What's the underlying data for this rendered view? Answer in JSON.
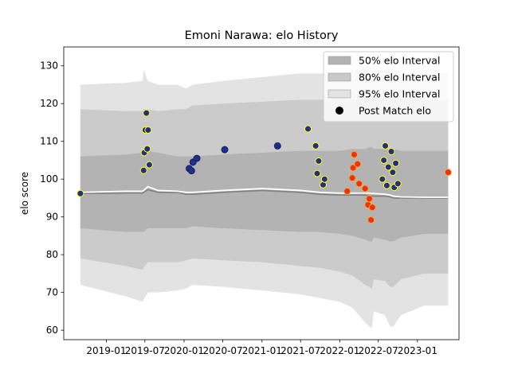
{
  "chart_data": {
    "type": "line",
    "title": "Emoni Narawa: elo History",
    "xlabel": "",
    "ylabel": "elo score",
    "xlim": [
      "2018-06-15",
      "2023-07-15"
    ],
    "ylim": [
      57.5,
      135
    ],
    "yticks": [
      60,
      70,
      80,
      90,
      100,
      110,
      120,
      130
    ],
    "xticks": [
      {
        "date": "2019-01-01",
        "label": "2019-01"
      },
      {
        "date": "2019-07-01",
        "label": "2019-07"
      },
      {
        "date": "2020-01-01",
        "label": "2020-01"
      },
      {
        "date": "2020-07-01",
        "label": "2020-07"
      },
      {
        "date": "2021-01-01",
        "label": "2021-01"
      },
      {
        "date": "2021-07-01",
        "label": "2021-07"
      },
      {
        "date": "2022-01-01",
        "label": "2022-01"
      },
      {
        "date": "2022-07-01",
        "label": "2022-07"
      },
      {
        "date": "2023-01-01",
        "label": "2023-01"
      }
    ],
    "grid": false,
    "legend_position": "top-right",
    "legend": [
      {
        "label": "50% elo Interval",
        "kind": "band",
        "color": "#b3b3b3"
      },
      {
        "label": "80% elo Interval",
        "kind": "band",
        "color": "#c9c9c9"
      },
      {
        "label": "95% elo Interval",
        "kind": "band",
        "color": "#e3e3e3"
      },
      {
        "label": "Post Match elo",
        "kind": "marker",
        "color": "#000000"
      }
    ],
    "colors": {
      "band95": "#e3e3e3",
      "band80": "#cbcbcb",
      "band50": "#b3b3b3",
      "median": "#808080",
      "mean": "#ffffff"
    },
    "timeline": [
      {
        "date": "2018-09-01",
        "lo95": 72,
        "lo80": 79,
        "lo50": 87,
        "median": 96.2,
        "mean": 96.5,
        "hi50": 106,
        "hi80": 118.5,
        "hi95": 125
      },
      {
        "date": "2019-04-01",
        "lo95": 69,
        "lo80": 77,
        "lo50": 86,
        "median": 96.3,
        "mean": 96.8,
        "hi50": 106.5,
        "hi80": 118,
        "hi95": 125.5
      },
      {
        "date": "2019-06-20",
        "lo95": 67.5,
        "lo80": 76,
        "lo50": 86,
        "median": 96.3,
        "mean": 96.8,
        "hi50": 107,
        "hi80": 118,
        "hi95": 126
      },
      {
        "date": "2019-06-25",
        "lo95": 68,
        "lo80": 76.5,
        "lo50": 86,
        "median": 96.5,
        "mean": 97,
        "hi50": 107.5,
        "hi80": 118.5,
        "hi95": 129
      },
      {
        "date": "2019-07-15",
        "lo95": 70,
        "lo80": 78,
        "lo50": 87,
        "median": 97.2,
        "mean": 98,
        "hi50": 107.5,
        "hi80": 118.5,
        "hi95": 126
      },
      {
        "date": "2019-09-01",
        "lo95": 70,
        "lo80": 78,
        "lo50": 87,
        "median": 96.5,
        "mean": 97,
        "hi50": 107,
        "hi80": 118,
        "hi95": 125
      },
      {
        "date": "2019-12-01",
        "lo95": 70.5,
        "lo80": 78,
        "lo50": 87,
        "median": 96.5,
        "mean": 96.8,
        "hi50": 106,
        "hi80": 118.5,
        "hi95": 125
      },
      {
        "date": "2020-01-10",
        "lo95": 71,
        "lo80": 78.5,
        "lo50": 87,
        "median": 96,
        "mean": 96.5,
        "hi50": 106,
        "hi80": 118.5,
        "hi95": 124
      },
      {
        "date": "2020-02-10",
        "lo95": 72,
        "lo80": 79,
        "lo50": 87.5,
        "median": 96,
        "mean": 96.5,
        "hi50": 106,
        "hi80": 119.5,
        "hi95": 125
      },
      {
        "date": "2020-07-01",
        "lo95": 71.5,
        "lo80": 78.5,
        "lo50": 87,
        "median": 96.5,
        "mean": 97,
        "hi50": 106.5,
        "hi80": 120,
        "hi95": 126
      },
      {
        "date": "2021-01-01",
        "lo95": 70.5,
        "lo80": 78,
        "lo50": 86.5,
        "median": 97,
        "mean": 97.5,
        "hi50": 107,
        "hi80": 120.5,
        "hi95": 127
      },
      {
        "date": "2021-07-01",
        "lo95": 69.5,
        "lo80": 77,
        "lo50": 86,
        "median": 96.5,
        "mean": 97,
        "hi50": 107.5,
        "hi80": 121,
        "hi95": 128
      },
      {
        "date": "2021-10-01",
        "lo95": 68.5,
        "lo80": 76.5,
        "lo50": 86,
        "median": 96,
        "mean": 96.5,
        "hi50": 107.5,
        "hi80": 121,
        "hi95": 128
      },
      {
        "date": "2022-01-01",
        "lo95": 67.5,
        "lo80": 75.5,
        "lo50": 85.5,
        "median": 95.8,
        "mean": 96.3,
        "hi50": 107.5,
        "hi80": 121,
        "hi95": 128
      },
      {
        "date": "2022-03-01",
        "lo95": 66,
        "lo80": 74.5,
        "lo50": 85,
        "median": 95.8,
        "mean": 96.3,
        "hi50": 108,
        "hi80": 121,
        "hi95": 129
      },
      {
        "date": "2022-05-01",
        "lo95": 62,
        "lo80": 72,
        "lo50": 84,
        "median": 95.8,
        "mean": 96.3,
        "hi50": 108,
        "hi80": 121,
        "hi95": 129
      },
      {
        "date": "2022-05-20",
        "lo95": 61,
        "lo80": 71.5,
        "lo50": 83.5,
        "median": 95.5,
        "mean": 96.3,
        "hi50": 108.5,
        "hi80": 121.5,
        "hi95": 130
      },
      {
        "date": "2022-06-01",
        "lo95": 60.5,
        "lo80": 71,
        "lo50": 83.5,
        "median": 95.5,
        "mean": 96.2,
        "hi50": 108.5,
        "hi80": 121.5,
        "hi95": 130
      },
      {
        "date": "2022-06-10",
        "lo95": 65,
        "lo80": 73.5,
        "lo50": 84.5,
        "median": 95.5,
        "mean": 96.2,
        "hi50": 108,
        "hi80": 121.5,
        "hi95": 128
      },
      {
        "date": "2022-08-01",
        "lo95": 64,
        "lo80": 73,
        "lo50": 84,
        "median": 95.5,
        "mean": 96,
        "hi50": 108,
        "hi80": 121.5,
        "hi95": 129
      },
      {
        "date": "2022-08-25",
        "lo95": 61,
        "lo80": 71.5,
        "lo50": 83.5,
        "median": 95.3,
        "mean": 95.8,
        "hi50": 108,
        "hi80": 121.5,
        "hi95": 129
      },
      {
        "date": "2022-09-10",
        "lo95": 61,
        "lo80": 71.5,
        "lo50": 83.5,
        "median": 95,
        "mean": 95.5,
        "hi50": 108,
        "hi80": 121.5,
        "hi95": 129
      },
      {
        "date": "2022-10-15",
        "lo95": 64,
        "lo80": 73.5,
        "lo50": 84.5,
        "median": 95,
        "mean": 95.3,
        "hi50": 107.5,
        "hi80": 121.5,
        "hi95": 128
      },
      {
        "date": "2023-02-01",
        "lo95": 66.5,
        "lo80": 75,
        "lo50": 85.5,
        "median": 95,
        "mean": 95.2,
        "hi50": 107.5,
        "hi80": 121,
        "hi95": 128
      },
      {
        "date": "2023-05-25",
        "lo95": 66.5,
        "lo80": 75,
        "lo50": 85.5,
        "median": 95,
        "mean": 95.2,
        "hi50": 107.5,
        "hi80": 121,
        "hi95": 128
      }
    ],
    "points": [
      {
        "date": "2018-09-01",
        "y": 96.2,
        "color": "navy",
        "outline": "yellow"
      },
      {
        "date": "2019-06-25",
        "y": 102.3,
        "color": "navy",
        "outline": "yellow"
      },
      {
        "date": "2019-06-28",
        "y": 107,
        "color": "navy",
        "outline": "yellow"
      },
      {
        "date": "2019-07-03",
        "y": 113,
        "color": "navy",
        "outline": "yellow"
      },
      {
        "date": "2019-07-08",
        "y": 117.5,
        "color": "navy",
        "outline": "yellow"
      },
      {
        "date": "2019-07-12",
        "y": 108,
        "color": "navy",
        "outline": "yellow"
      },
      {
        "date": "2019-07-16",
        "y": 113,
        "color": "navy",
        "outline": "yellow"
      },
      {
        "date": "2019-07-22",
        "y": 103.8,
        "color": "navy",
        "outline": "yellow"
      },
      {
        "date": "2020-01-25",
        "y": 102.8,
        "color": "navy",
        "outline": "navy"
      },
      {
        "date": "2020-02-05",
        "y": 102.2,
        "color": "navy",
        "outline": "navy"
      },
      {
        "date": "2020-02-12",
        "y": 104.5,
        "color": "navy",
        "outline": "navy"
      },
      {
        "date": "2020-03-01",
        "y": 105.5,
        "color": "navy",
        "outline": "navy"
      },
      {
        "date": "2020-07-10",
        "y": 107.8,
        "color": "navy",
        "outline": "navy"
      },
      {
        "date": "2021-03-15",
        "y": 108.8,
        "color": "navy",
        "outline": "navy"
      },
      {
        "date": "2021-08-05",
        "y": 113.3,
        "color": "navy",
        "outline": "yellow"
      },
      {
        "date": "2021-09-10",
        "y": 108.8,
        "color": "navy",
        "outline": "yellow"
      },
      {
        "date": "2021-09-17",
        "y": 101.5,
        "color": "navy",
        "outline": "yellow"
      },
      {
        "date": "2021-09-24",
        "y": 104.8,
        "color": "navy",
        "outline": "yellow"
      },
      {
        "date": "2021-10-15",
        "y": 98.5,
        "color": "navy",
        "outline": "yellow"
      },
      {
        "date": "2021-10-22",
        "y": 100,
        "color": "navy",
        "outline": "yellow"
      },
      {
        "date": "2022-02-05",
        "y": 96.8,
        "color": "red",
        "outline": "orange"
      },
      {
        "date": "2022-03-01",
        "y": 100.3,
        "color": "red",
        "outline": "orange"
      },
      {
        "date": "2022-03-05",
        "y": 103,
        "color": "red",
        "outline": "orange"
      },
      {
        "date": "2022-03-10",
        "y": 106.5,
        "color": "red",
        "outline": "orange"
      },
      {
        "date": "2022-03-26",
        "y": 104,
        "color": "red",
        "outline": "orange"
      },
      {
        "date": "2022-04-02",
        "y": 98.8,
        "color": "red",
        "outline": "orange"
      },
      {
        "date": "2022-04-30",
        "y": 97.5,
        "color": "red",
        "outline": "orange"
      },
      {
        "date": "2022-05-14",
        "y": 93.2,
        "color": "red",
        "outline": "orange"
      },
      {
        "date": "2022-05-20",
        "y": 94.8,
        "color": "red",
        "outline": "orange"
      },
      {
        "date": "2022-05-28",
        "y": 89.2,
        "color": "red",
        "outline": "orange"
      },
      {
        "date": "2022-06-03",
        "y": 92.5,
        "color": "red",
        "outline": "orange"
      },
      {
        "date": "2022-07-20",
        "y": 100,
        "color": "navy",
        "outline": "yellow"
      },
      {
        "date": "2022-07-27",
        "y": 105,
        "color": "navy",
        "outline": "yellow"
      },
      {
        "date": "2022-08-03",
        "y": 108.8,
        "color": "navy",
        "outline": "yellow"
      },
      {
        "date": "2022-08-10",
        "y": 98.3,
        "color": "navy",
        "outline": "yellow"
      },
      {
        "date": "2022-08-17",
        "y": 103.2,
        "color": "navy",
        "outline": "yellow"
      },
      {
        "date": "2022-08-31",
        "y": 107.3,
        "color": "navy",
        "outline": "yellow"
      },
      {
        "date": "2022-09-07",
        "y": 101.8,
        "color": "navy",
        "outline": "yellow"
      },
      {
        "date": "2022-09-14",
        "y": 97.8,
        "color": "navy",
        "outline": "yellow"
      },
      {
        "date": "2022-09-21",
        "y": 104.2,
        "color": "navy",
        "outline": "yellow"
      },
      {
        "date": "2022-10-01",
        "y": 98.8,
        "color": "navy",
        "outline": "yellow"
      },
      {
        "date": "2023-05-25",
        "y": 101.8,
        "color": "red",
        "outline": "orange"
      }
    ]
  }
}
